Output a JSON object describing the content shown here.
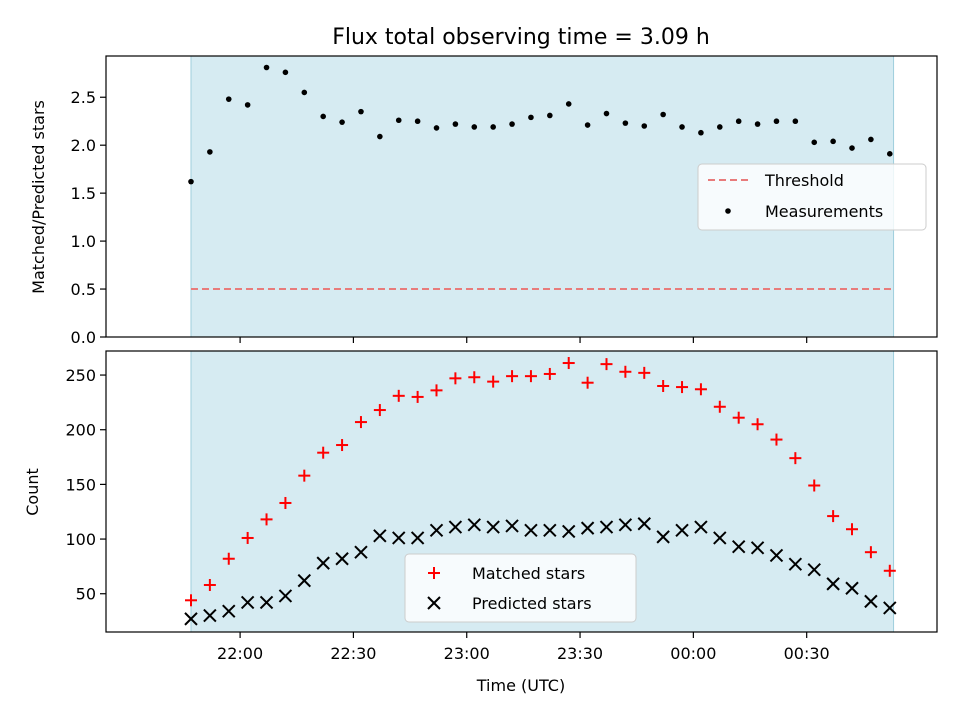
{
  "chart_data": [
    {
      "type": "scatter",
      "title": "Flux total observing time = 3.09 h",
      "ylabel": "Matched/Predicted stars",
      "xlabel": "",
      "x_unit": "minutes_from_21:30",
      "xlim": [
        -5.5,
        214.5
      ],
      "ylim": [
        0,
        2.93
      ],
      "yticks": [
        0.0,
        0.5,
        1.0,
        1.5,
        2.0,
        2.5
      ],
      "ytick_labels": [
        "0.0",
        "0.5",
        "1.0",
        "1.5",
        "2.0",
        "2.5"
      ],
      "observing_window": [
        17,
        203
      ],
      "threshold": 0.5,
      "legend_position": "center-right",
      "series": [
        {
          "name": "Measurements",
          "color": "#000000",
          "x": [
            17,
            22,
            27,
            32,
            37,
            42,
            47,
            52,
            57,
            62,
            67,
            72,
            77,
            82,
            87,
            92,
            97,
            102,
            107,
            112,
            117,
            122,
            127,
            132,
            137,
            142,
            147,
            152,
            157,
            162,
            167,
            172,
            177,
            182,
            187,
            192,
            197,
            202
          ],
          "y": [
            1.62,
            1.93,
            2.48,
            2.42,
            2.81,
            2.76,
            2.55,
            2.3,
            2.24,
            2.35,
            2.09,
            2.26,
            2.25,
            2.18,
            2.22,
            2.19,
            2.19,
            2.22,
            2.29,
            2.31,
            2.43,
            2.21,
            2.33,
            2.23,
            2.2,
            2.32,
            2.19,
            2.13,
            2.19,
            2.25,
            2.22,
            2.25,
            2.25,
            2.03,
            2.04,
            1.97,
            2.06,
            1.91
          ]
        },
        {
          "name": "Threshold",
          "color": "#e87b7b",
          "style": "dashed",
          "x": [
            17,
            203
          ],
          "y": [
            0.5,
            0.5
          ]
        }
      ]
    },
    {
      "type": "scatter",
      "title": "",
      "ylabel": "Count",
      "xlabel": "Time (UTC)",
      "x_unit": "minutes_from_21:30",
      "xlim": [
        -5.5,
        214.5
      ],
      "ylim": [
        15,
        272
      ],
      "yticks": [
        50,
        100,
        150,
        200,
        250
      ],
      "ytick_labels": [
        "50",
        "100",
        "150",
        "200",
        "250"
      ],
      "xticks": [
        30,
        60,
        90,
        120,
        150,
        180
      ],
      "xtick_labels": [
        "22:00",
        "22:30",
        "23:00",
        "23:30",
        "00:00",
        "00:30"
      ],
      "observing_window": [
        17,
        203
      ],
      "legend_position": "lower-center",
      "series": [
        {
          "name": "Matched stars",
          "color": "#ff0000",
          "marker": "+",
          "x": [
            17,
            22,
            27,
            32,
            37,
            42,
            47,
            52,
            57,
            62,
            67,
            72,
            77,
            82,
            87,
            92,
            97,
            102,
            107,
            112,
            117,
            122,
            127,
            132,
            137,
            142,
            147,
            152,
            157,
            162,
            167,
            172,
            177,
            182,
            187,
            192,
            197,
            202
          ],
          "y": [
            44,
            58,
            82,
            101,
            118,
            133,
            158,
            179,
            186,
            207,
            218,
            231,
            230,
            236,
            247,
            248,
            244,
            249,
            249,
            251,
            261,
            243,
            260,
            253,
            252,
            240,
            239,
            237,
            221,
            211,
            205,
            191,
            174,
            149,
            121,
            109,
            88,
            71
          ]
        },
        {
          "name": "Predicted stars",
          "color": "#000000",
          "marker": "x",
          "x": [
            17,
            22,
            27,
            32,
            37,
            42,
            47,
            52,
            57,
            62,
            67,
            72,
            77,
            82,
            87,
            92,
            97,
            102,
            107,
            112,
            117,
            122,
            127,
            132,
            137,
            142,
            147,
            152,
            157,
            162,
            167,
            172,
            177,
            182,
            187,
            192,
            197,
            202
          ],
          "y": [
            27,
            30,
            34,
            42,
            42,
            48,
            62,
            78,
            82,
            88,
            103,
            101,
            101,
            108,
            111,
            113,
            111,
            112,
            108,
            108,
            107,
            110,
            111,
            113,
            114,
            102,
            108,
            111,
            101,
            93,
            92,
            85,
            77,
            72,
            59,
            55,
            43,
            37
          ]
        }
      ]
    }
  ]
}
